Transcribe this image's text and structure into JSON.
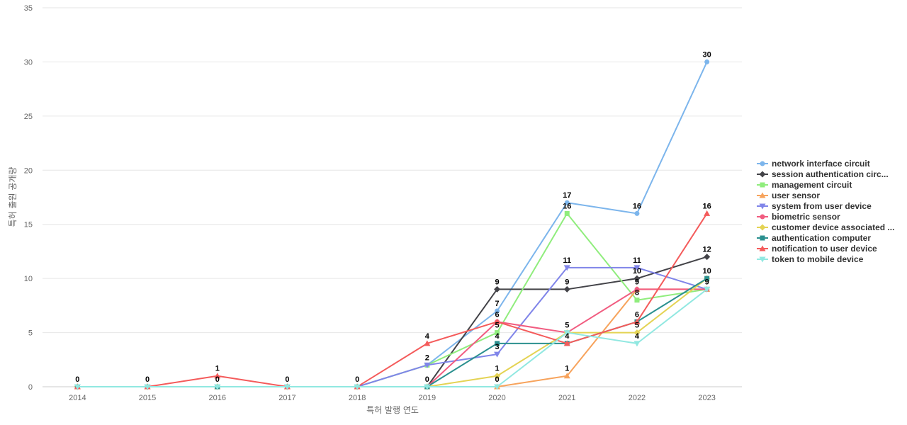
{
  "chart_data": {
    "type": "line",
    "xlabel": "특허 발행 연도",
    "ylabel": "특허 출원 공개량",
    "x": [
      "2014",
      "2015",
      "2016",
      "2017",
      "2018",
      "2019",
      "2020",
      "2021",
      "2022",
      "2023"
    ],
    "ylim": [
      0,
      35
    ],
    "yticks": [
      0,
      5,
      10,
      15,
      20,
      25,
      30,
      35
    ],
    "grid": true,
    "legend": "right",
    "series": [
      {
        "name": "network interface circuit",
        "color": "#7cb5ec",
        "marker": "circle",
        "values": [
          0,
          0,
          0,
          0,
          0,
          2,
          7,
          17,
          16,
          30
        ]
      },
      {
        "name": "session authentication circ...",
        "color": "#434348",
        "marker": "diamond",
        "values": [
          0,
          0,
          0,
          0,
          0,
          0,
          9,
          9,
          10,
          12
        ]
      },
      {
        "name": "management circuit",
        "color": "#90ed7d",
        "marker": "square",
        "values": [
          0,
          0,
          0,
          0,
          0,
          2,
          5,
          16,
          8,
          9
        ]
      },
      {
        "name": "user sensor",
        "color": "#f7a35c",
        "marker": "triangle",
        "values": [
          0,
          0,
          0,
          0,
          0,
          0,
          0,
          1,
          9,
          9
        ]
      },
      {
        "name": "system from user device",
        "color": "#8085e9",
        "marker": "triangle-down",
        "values": [
          0,
          0,
          0,
          0,
          0,
          2,
          3,
          11,
          11,
          9
        ]
      },
      {
        "name": "biometric sensor",
        "color": "#f15c80",
        "marker": "circle",
        "values": [
          0,
          0,
          0,
          0,
          0,
          0,
          6,
          5,
          9,
          9
        ]
      },
      {
        "name": "customer device associated ...",
        "color": "#e4d354",
        "marker": "diamond",
        "values": [
          0,
          0,
          0,
          0,
          0,
          0,
          1,
          5,
          5,
          10
        ]
      },
      {
        "name": "authentication computer",
        "color": "#2b908f",
        "marker": "square",
        "values": [
          0,
          0,
          0,
          0,
          0,
          0,
          4,
          4,
          6,
          10
        ]
      },
      {
        "name": "notification to user device",
        "color": "#f45b5b",
        "marker": "triangle",
        "values": [
          0,
          0,
          1,
          0,
          0,
          4,
          6,
          4,
          6,
          16
        ]
      },
      {
        "name": "token to mobile device",
        "color": "#91e8e1",
        "marker": "triangle-down",
        "values": [
          0,
          0,
          0,
          0,
          0,
          0,
          0,
          5,
          4,
          9
        ]
      }
    ],
    "data_labels": [
      {
        "x": "2014",
        "text": "0"
      },
      {
        "x": "2015",
        "text": "0"
      },
      {
        "x": "2016",
        "text": "1"
      },
      {
        "x": "2016",
        "text": "0"
      },
      {
        "x": "2017",
        "text": "0"
      },
      {
        "x": "2018",
        "text": "0"
      },
      {
        "x": "2019",
        "text": "4"
      },
      {
        "x": "2019",
        "text": "2"
      },
      {
        "x": "2019",
        "text": "0"
      },
      {
        "x": "2020",
        "text": "9"
      },
      {
        "x": "2020",
        "text": "7"
      },
      {
        "x": "2020",
        "text": "6"
      },
      {
        "x": "2020",
        "text": "5"
      },
      {
        "x": "2020",
        "text": "4"
      },
      {
        "x": "2020",
        "text": "3"
      },
      {
        "x": "2020",
        "text": "1"
      },
      {
        "x": "2020",
        "text": "0"
      },
      {
        "x": "2021",
        "text": "17"
      },
      {
        "x": "2021",
        "text": "16"
      },
      {
        "x": "2021",
        "text": "11"
      },
      {
        "x": "2021",
        "text": "9"
      },
      {
        "x": "2021",
        "text": "5"
      },
      {
        "x": "2021",
        "text": "4"
      },
      {
        "x": "2021",
        "text": "1"
      },
      {
        "x": "2022",
        "text": "16"
      },
      {
        "x": "2022",
        "text": "11"
      },
      {
        "x": "2022",
        "text": "10"
      },
      {
        "x": "2022",
        "text": "9"
      },
      {
        "x": "2022",
        "text": "8"
      },
      {
        "x": "2022",
        "text": "6"
      },
      {
        "x": "2022",
        "text": "5"
      },
      {
        "x": "2022",
        "text": "4"
      },
      {
        "x": "2023",
        "text": "30"
      },
      {
        "x": "2023",
        "text": "16"
      },
      {
        "x": "2023",
        "text": "12"
      },
      {
        "x": "2023",
        "text": "10"
      },
      {
        "x": "2023",
        "text": "9"
      }
    ]
  }
}
